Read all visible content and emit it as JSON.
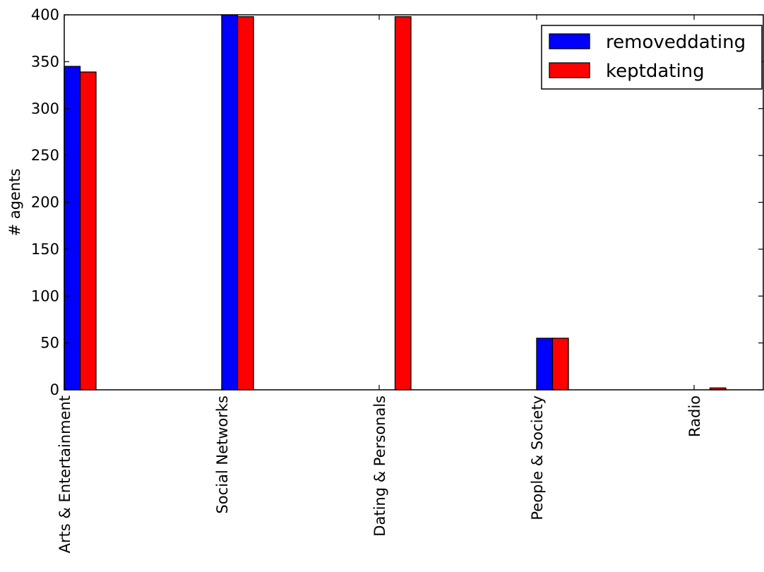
{
  "chart_data": {
    "type": "bar",
    "categories": [
      "Arts & Entertainment",
      "Social Networks",
      "Dating & Personals",
      "People & Society",
      "Radio"
    ],
    "series": [
      {
        "name": "removeddating",
        "values": [
          345,
          400,
          0,
          55,
          0
        ],
        "color": "#0000ff"
      },
      {
        "name": "keptdating",
        "values": [
          339,
          398,
          398,
          55,
          2
        ],
        "color": "#ff0000"
      }
    ],
    "xlabel": "",
    "ylabel": "# agents",
    "ylim": [
      0,
      400
    ],
    "yticks": [
      "0",
      "50",
      "100",
      "150",
      "200",
      "250",
      "300",
      "350",
      "400"
    ],
    "grid": false,
    "legend_position": "upper right"
  }
}
